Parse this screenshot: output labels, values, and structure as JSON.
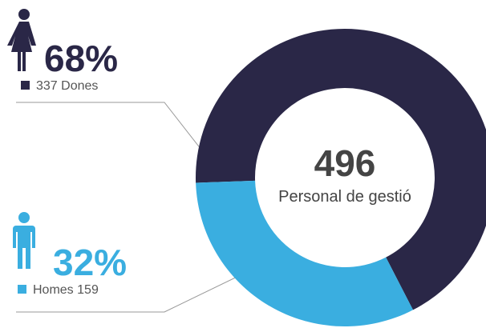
{
  "chart_data": {
    "type": "donut",
    "center_value": 496,
    "center_label": "Personal de gestió",
    "categories": [
      "Dones",
      "Homes"
    ],
    "counts": [
      337,
      159
    ],
    "values": [
      68,
      32
    ],
    "value_labels": [
      "68%",
      "32%"
    ],
    "colors": [
      "#2a2747",
      "#3aaee0"
    ]
  }
}
